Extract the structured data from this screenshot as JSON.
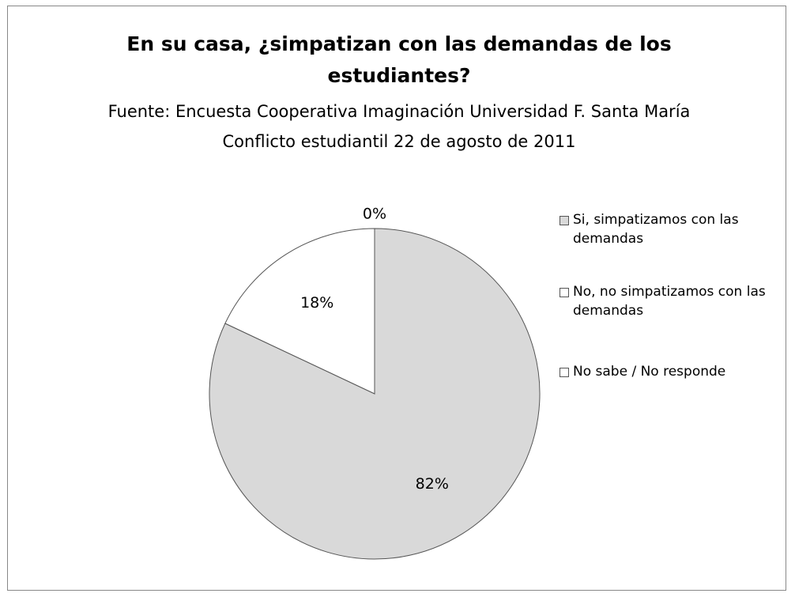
{
  "chart_data": {
    "type": "pie",
    "title": "En su casa, ¿simpatizan con las demandas de los estudiantes?",
    "subtitle": "Fuente: Encuesta Cooperativa Imaginación Universidad F. Santa María Conflicto estudiantil 22 de agosto de 2011",
    "categories": [
      "Si, simpatizamos con las demandas",
      "No, no simpatizamos con las demandas",
      "No sabe / No responde"
    ],
    "values": [
      82,
      18,
      0
    ],
    "value_labels": [
      "82%",
      "18%",
      "0%"
    ],
    "colors": [
      "#d9d9d9",
      "#ffffff",
      "#ffffff"
    ],
    "legend": "right"
  }
}
